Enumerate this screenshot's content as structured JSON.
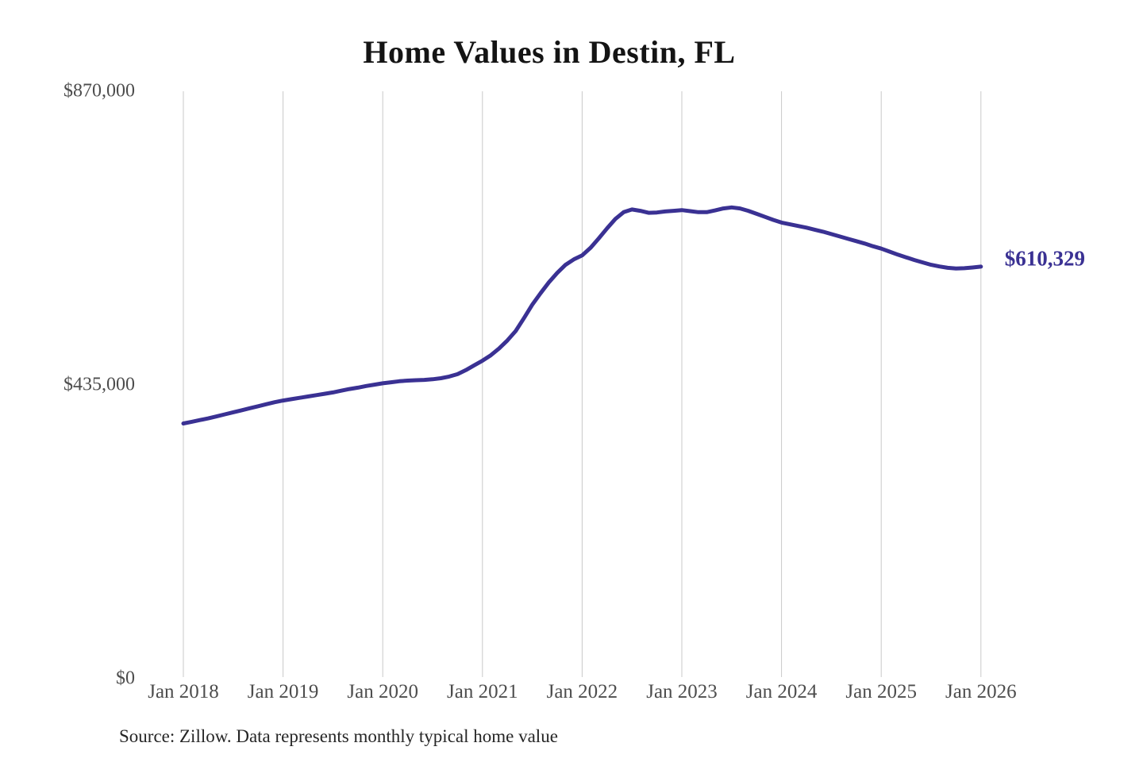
{
  "page": {
    "title": "Home Values in Destin, FL",
    "source_note": "Source: Zillow. Data represents monthly typical home value"
  },
  "chart_data": {
    "type": "line",
    "title": "Home Values in Destin, FL",
    "unit": "USD",
    "ylim": [
      0,
      870000
    ],
    "grid": "vertical-only",
    "legend": "none",
    "line_color": "#3a3193",
    "gridline_color": "#c9c9c9",
    "end_label": "$610,329",
    "end_value": 610329,
    "y_ticks": [
      {
        "value": 0,
        "label": "$0"
      },
      {
        "value": 435000,
        "label": "$435,000"
      },
      {
        "value": 870000,
        "label": "$870,000"
      }
    ],
    "x_ticks": [
      {
        "month_index": 0,
        "label": "Jan 2018"
      },
      {
        "month_index": 12,
        "label": "Jan 2019"
      },
      {
        "month_index": 24,
        "label": "Jan 2020"
      },
      {
        "month_index": 36,
        "label": "Jan 2021"
      },
      {
        "month_index": 48,
        "label": "Jan 2022"
      },
      {
        "month_index": 60,
        "label": "Jan 2023"
      },
      {
        "month_index": 72,
        "label": "Jan 2024"
      },
      {
        "month_index": 84,
        "label": "Jan 2025"
      },
      {
        "month_index": 96,
        "label": "Jan 2026"
      }
    ],
    "series": [
      {
        "name": "Monthly typical home value",
        "start": "2018-01",
        "frequency": "monthly",
        "values": [
          378000,
          380500,
          383000,
          385500,
          388500,
          391500,
          394500,
          397500,
          400500,
          403500,
          406500,
          409500,
          412000,
          414000,
          416000,
          418000,
          420000,
          422000,
          424000,
          426500,
          429000,
          431000,
          433500,
          435500,
          437500,
          439000,
          440500,
          441500,
          442000,
          442500,
          443500,
          445000,
          447500,
          451000,
          457000,
          464000,
          471000,
          479000,
          489000,
          501000,
          515000,
          534000,
          554000,
          571000,
          587000,
          601000,
          613000,
          621000,
          627000,
          638000,
          652000,
          667000,
          681000,
          691000,
          695000,
          693000,
          690000,
          690500,
          692000,
          693000,
          694000,
          692500,
          691000,
          691000,
          693500,
          696500,
          698000,
          696500,
          693000,
          688500,
          684000,
          679500,
          675500,
          673000,
          670500,
          668000,
          665000,
          662000,
          658500,
          655000,
          651500,
          648000,
          644500,
          640500,
          637000,
          632500,
          628000,
          624000,
          620000,
          616500,
          613000,
          610500,
          608500,
          607500,
          608000,
          609000,
          610329
        ]
      }
    ]
  }
}
